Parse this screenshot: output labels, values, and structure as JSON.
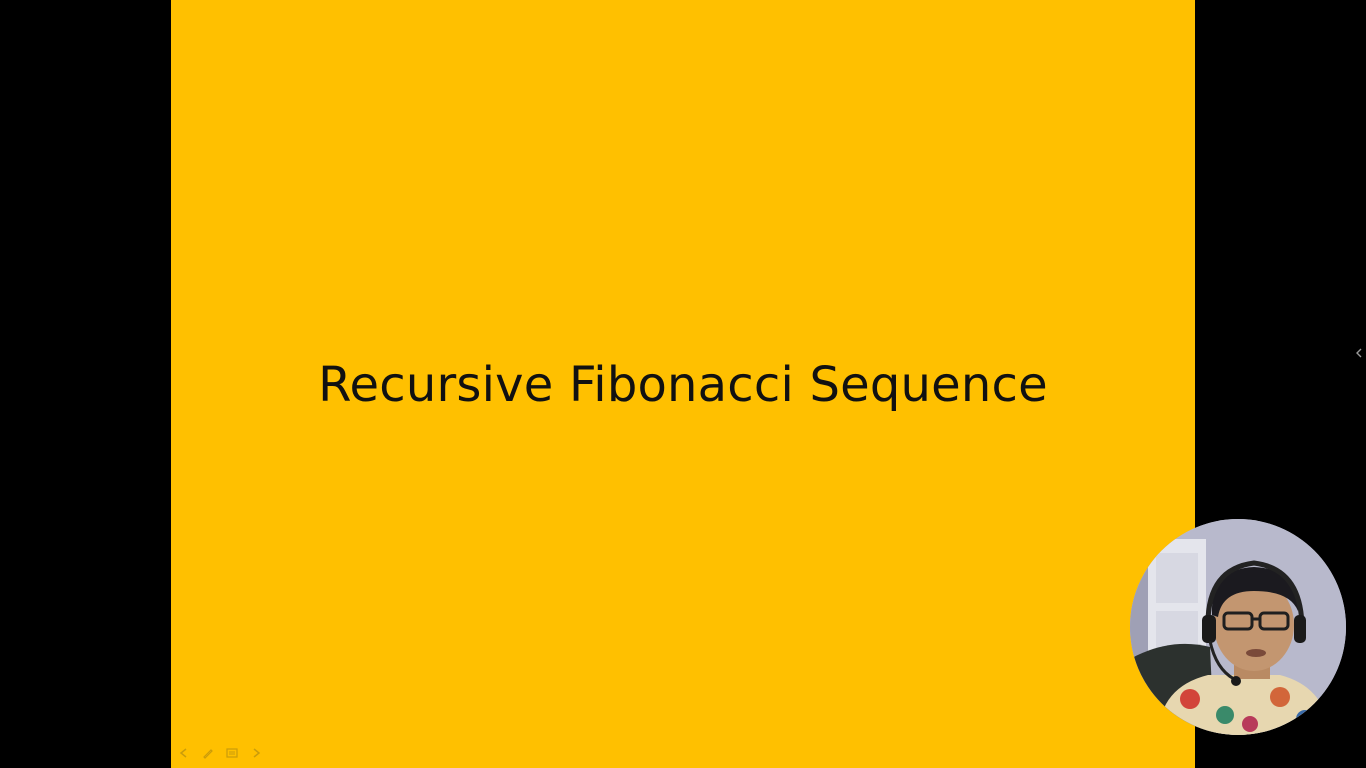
{
  "slide": {
    "title": "Recursive Fibonacci Sequence",
    "background_color": "#FFC000",
    "text_color": "#111111"
  },
  "toolbar": {
    "buttons": [
      {
        "name": "previous-slide",
        "icon": "back-arrow-icon"
      },
      {
        "name": "pen-tool",
        "icon": "pen-icon"
      },
      {
        "name": "slide-menu",
        "icon": "menu-icon"
      },
      {
        "name": "next-slide",
        "icon": "forward-arrow-icon"
      }
    ]
  },
  "side_panel_toggle": {
    "icon": "chevron-left-icon"
  },
  "webcam_overlay": {
    "icon": "presenter-video"
  }
}
